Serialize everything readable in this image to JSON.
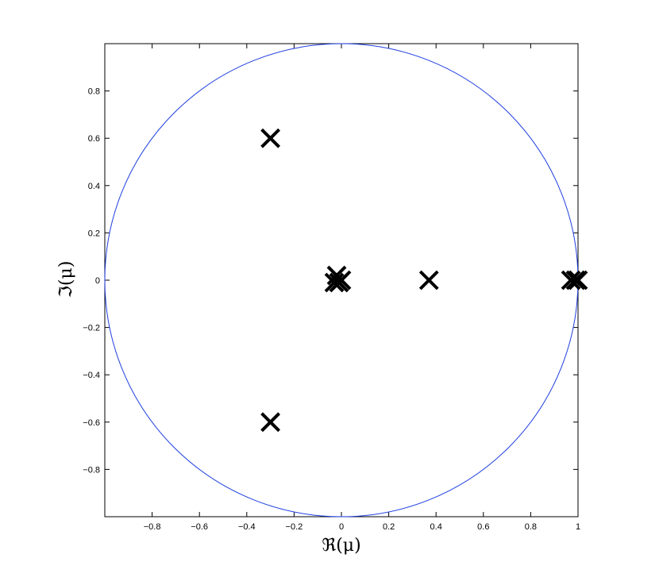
{
  "chart_data": {
    "type": "scatter",
    "xlabel": "ℜ(μ)",
    "ylabel": "ℑ(μ)",
    "xlim": [
      -1,
      1
    ],
    "ylim": [
      -1,
      1
    ],
    "xticks": [
      -0.8,
      -0.6,
      -0.4,
      -0.2,
      0,
      0.2,
      0.4,
      0.6,
      0.8,
      1
    ],
    "xtick_labels": [
      "−0.8",
      "−0.6",
      "−0.4",
      "−0.2",
      "0",
      "0.2",
      "0.4",
      "0.6",
      "0.8",
      "1"
    ],
    "yticks": [
      0.8,
      0.6,
      0.4,
      0.2,
      0,
      -0.2,
      -0.4,
      -0.6,
      -0.8
    ],
    "ytick_labels": [
      "0.8",
      "0.6",
      "0.4",
      "0.2",
      "0",
      "−0.2",
      "−0.4",
      "−0.6",
      "−0.8"
    ],
    "grid": false,
    "unit_circle": {
      "center": [
        0,
        0
      ],
      "radius": 1,
      "color": "#1f3fe0"
    },
    "marker": "x",
    "marker_color": "#000000",
    "points": [
      {
        "x": -0.3,
        "y": 0.6
      },
      {
        "x": -0.3,
        "y": -0.6
      },
      {
        "x": -0.02,
        "y": 0.02
      },
      {
        "x": -0.01,
        "y": -0.01
      },
      {
        "x": -0.03,
        "y": -0.01
      },
      {
        "x": 0.0,
        "y": 0.0
      },
      {
        "x": 0.37,
        "y": 0.0
      },
      {
        "x": 0.97,
        "y": 0.0
      },
      {
        "x": 0.99,
        "y": 0.0
      },
      {
        "x": 1.0,
        "y": 0.0
      }
    ]
  }
}
